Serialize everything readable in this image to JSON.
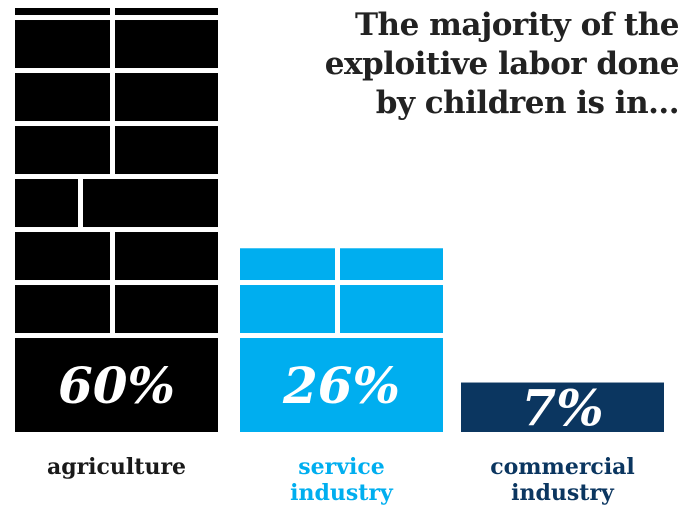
{
  "headline": {
    "line1": "The majority of the",
    "line2": "exploitive labor done",
    "line3": "by children is in..."
  },
  "colors": {
    "agriculture": "#000000",
    "service": "#00aeef",
    "commercial": "#0b3660",
    "background": "#ffffff"
  },
  "chart_data": {
    "type": "bar",
    "categories": [
      "agriculture",
      "service industry",
      "commercial industry"
    ],
    "category_lines": [
      [
        "agriculture"
      ],
      [
        "service",
        "industry"
      ],
      [
        "commercial",
        "industry"
      ]
    ],
    "values": [
      60,
      26,
      7
    ],
    "value_labels": [
      "60%",
      "26%",
      "7%"
    ],
    "unit": "%",
    "title": "The majority of the exploitive labor done by children is in...",
    "xlabel": "",
    "ylabel": "",
    "grid": false,
    "legend": "none"
  }
}
